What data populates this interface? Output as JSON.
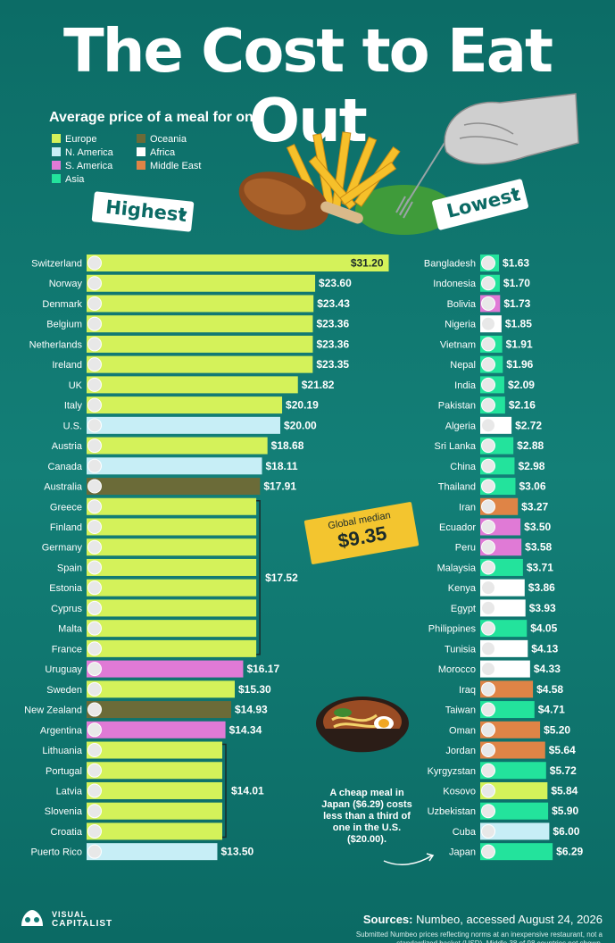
{
  "title": "The Cost to Eat Out",
  "subtitle": "Average price of a meal for one",
  "tags": {
    "highest": "Highest",
    "lowest": "Lowest"
  },
  "legend": [
    {
      "label": "Europe",
      "color": "#d4f25a"
    },
    {
      "label": "N. America",
      "color": "#c7eef6"
    },
    {
      "label": "S. America",
      "color": "#e07ad6"
    },
    {
      "label": "Asia",
      "color": "#23e39c"
    },
    {
      "label": "Oceania",
      "color": "#6b6b38"
    },
    {
      "label": "Africa",
      "color": "#ffffff"
    },
    {
      "label": "Middle East",
      "color": "#df8446"
    }
  ],
  "median": {
    "label": "Global median",
    "value": "$9.35"
  },
  "note": "A cheap meal in Japan ($6.29) costs less than a third of one in the U.S. ($20.00).",
  "sources_label": "Sources:",
  "sources": "Numbeo, accessed August 24, 2026",
  "footnote": "Submitted Numbeo prices reflecting norms at an inexpensive restaurant, not a standardized basket (USD). Middle 38 of 98 countries not shown.",
  "logo": {
    "line1": "VISUAL",
    "line2": "CAPITALIST"
  },
  "chart_data": [
    {
      "type": "bar",
      "title": "Highest",
      "unit": "USD",
      "categories": [
        "Switzerland",
        "Norway",
        "Denmark",
        "Belgium",
        "Netherlands",
        "Ireland",
        "UK",
        "Italy",
        "U.S.",
        "Austria",
        "Canada",
        "Australia",
        "Greece",
        "Finland",
        "Germany",
        "Spain",
        "Estonia",
        "Cyprus",
        "Malta",
        "France",
        "Uruguay",
        "Sweden",
        "New Zealand",
        "Argentina",
        "Lithuania",
        "Portugal",
        "Latvia",
        "Slovenia",
        "Croatia",
        "Puerto Rico"
      ],
      "values": [
        31.2,
        23.6,
        23.43,
        23.36,
        23.36,
        23.35,
        21.82,
        20.19,
        20.0,
        18.68,
        18.11,
        17.91,
        17.52,
        17.52,
        17.52,
        17.52,
        17.52,
        17.52,
        17.52,
        17.52,
        16.17,
        15.3,
        14.93,
        14.34,
        14.01,
        14.01,
        14.01,
        14.01,
        14.01,
        13.5
      ],
      "value_labels": [
        "$31.20",
        "$23.60",
        "$23.43",
        "$23.36",
        "$23.36",
        "$23.35",
        "$21.82",
        "$20.19",
        "$20.00",
        "$18.68",
        "$18.11",
        "$17.91",
        "",
        "",
        "",
        "",
        "",
        "",
        "",
        "",
        "$16.17",
        "$15.30",
        "$14.93",
        "$14.34",
        "",
        "",
        "",
        "",
        "",
        "$13.50"
      ],
      "regions": [
        "Europe",
        "Europe",
        "Europe",
        "Europe",
        "Europe",
        "Europe",
        "Europe",
        "Europe",
        "N. America",
        "Europe",
        "N. America",
        "Oceania",
        "Europe",
        "Europe",
        "Europe",
        "Europe",
        "Europe",
        "Europe",
        "Europe",
        "Europe",
        "S. America",
        "Europe",
        "Oceania",
        "S. America",
        "Europe",
        "Europe",
        "Europe",
        "Europe",
        "Europe",
        "N. America"
      ],
      "groups": [
        {
          "label": "$17.52",
          "from": "Greece",
          "to": "France"
        },
        {
          "label": "$14.01",
          "from": "Lithuania",
          "to": "Croatia"
        }
      ]
    },
    {
      "type": "bar",
      "title": "Lowest",
      "unit": "USD",
      "categories": [
        "Bangladesh",
        "Indonesia",
        "Bolivia",
        "Nigeria",
        "Vietnam",
        "Nepal",
        "India",
        "Pakistan",
        "Algeria",
        "Sri Lanka",
        "China",
        "Thailand",
        "Iran",
        "Ecuador",
        "Peru",
        "Malaysia",
        "Kenya",
        "Egypt",
        "Philippines",
        "Tunisia",
        "Morocco",
        "Iraq",
        "Taiwan",
        "Oman",
        "Jordan",
        "Kyrgyzstan",
        "Kosovo",
        "Uzbekistan",
        "Cuba",
        "Japan"
      ],
      "values": [
        1.63,
        1.7,
        1.73,
        1.85,
        1.91,
        1.96,
        2.09,
        2.16,
        2.72,
        2.88,
        2.98,
        3.06,
        3.27,
        3.5,
        3.58,
        3.71,
        3.86,
        3.93,
        4.05,
        4.13,
        4.33,
        4.58,
        4.71,
        5.2,
        5.64,
        5.72,
        5.84,
        5.9,
        6.0,
        6.29
      ],
      "value_labels": [
        "$1.63",
        "$1.70",
        "$1.73",
        "$1.85",
        "$1.91",
        "$1.96",
        "$2.09",
        "$2.16",
        "$2.72",
        "$2.88",
        "$2.98",
        "$3.06",
        "$3.27",
        "$3.50",
        "$3.58",
        "$3.71",
        "$3.86",
        "$3.93",
        "$4.05",
        "$4.13",
        "$4.33",
        "$4.58",
        "$4.71",
        "$5.20",
        "$5.64",
        "$5.72",
        "$5.84",
        "$5.90",
        "$6.00",
        "$6.29"
      ],
      "regions": [
        "Asia",
        "Asia",
        "S. America",
        "Africa",
        "Asia",
        "Asia",
        "Asia",
        "Asia",
        "Africa",
        "Asia",
        "Asia",
        "Asia",
        "Middle East",
        "S. America",
        "S. America",
        "Asia",
        "Africa",
        "Africa",
        "Asia",
        "Africa",
        "Africa",
        "Middle East",
        "Asia",
        "Middle East",
        "Middle East",
        "Asia",
        "Europe",
        "Asia",
        "N. America",
        "Asia"
      ]
    }
  ]
}
